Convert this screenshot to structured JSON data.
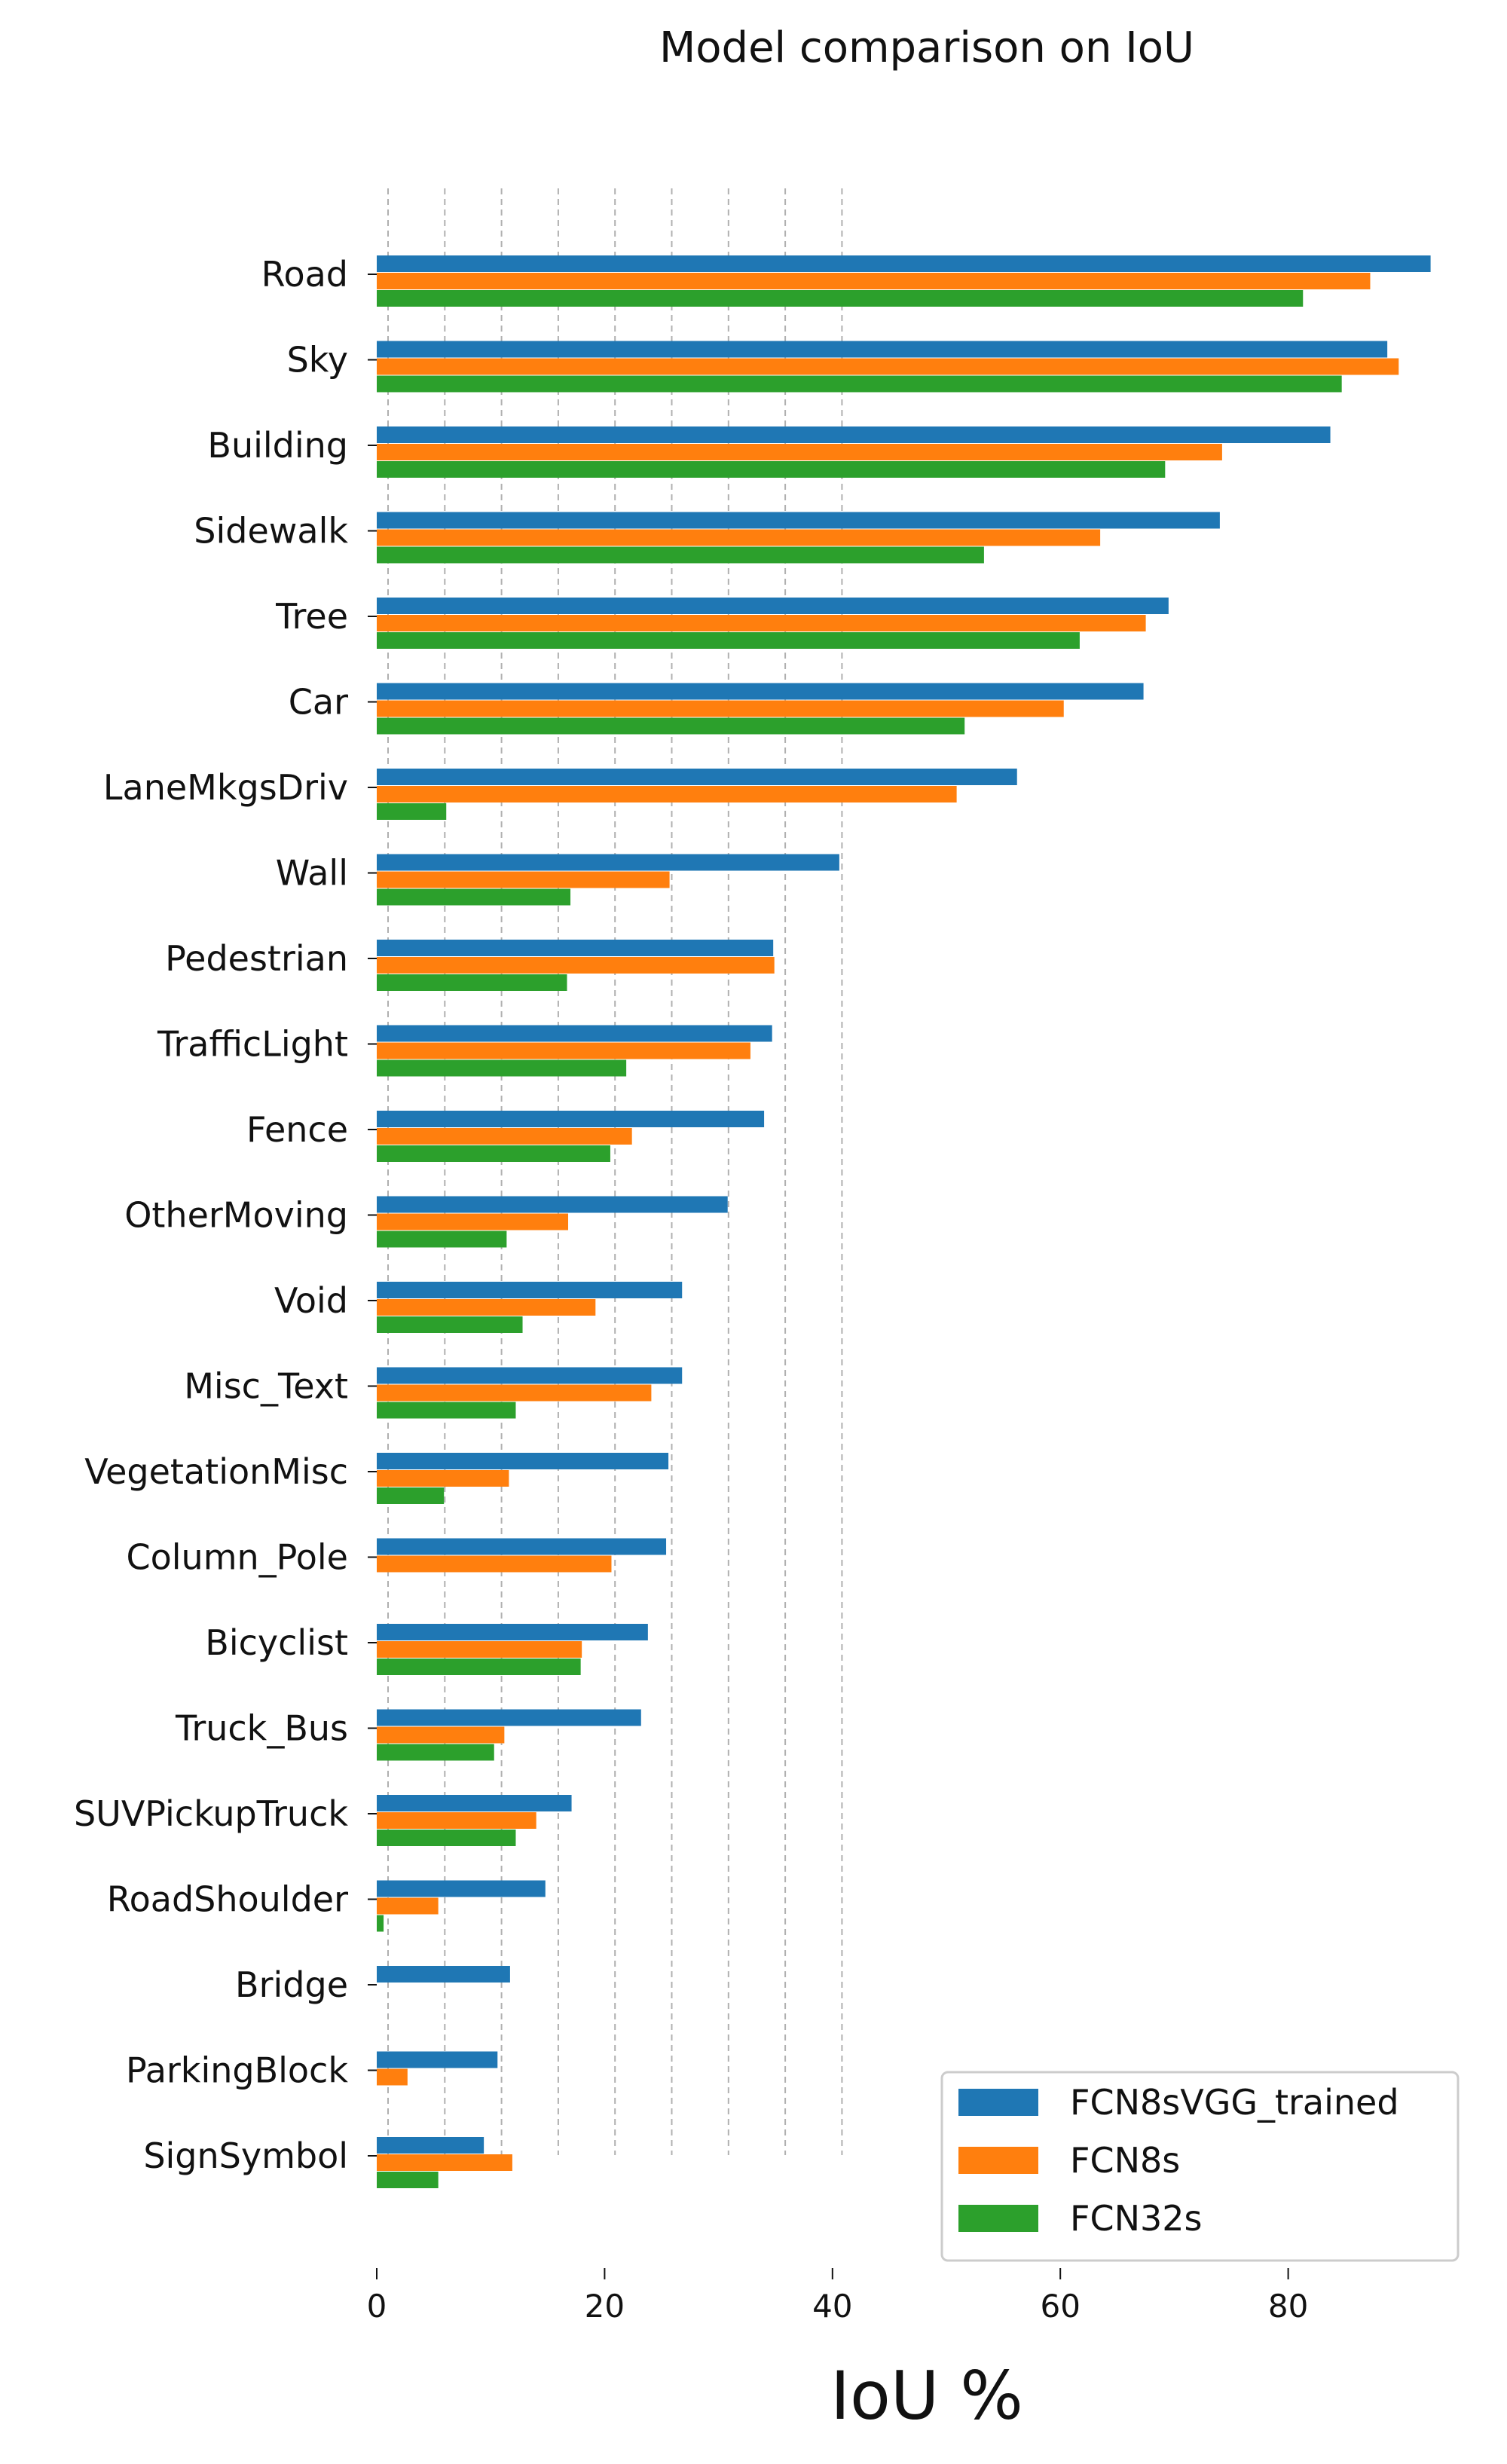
{
  "chart_data": {
    "type": "bar",
    "orientation": "horizontal",
    "title": "Model comparison on IoU",
    "xlabel": "IoU %",
    "ylabel": "",
    "xlim": [
      0,
      95
    ],
    "xticks": [
      0,
      20,
      40,
      60,
      80
    ],
    "grid": "vertical dashed",
    "legend_position": "bottom-right",
    "categories": [
      "Road",
      "Sky",
      "Building",
      "Sidewalk",
      "Tree",
      "Car",
      "LaneMkgsDriv",
      "Wall",
      "Pedestrian",
      "TrafficLight",
      "Fence",
      "OtherMoving",
      "Void",
      "Misc_Text",
      "VegetationMisc",
      "Column_Pole",
      "Bicyclist",
      "Truck_Bus",
      "SUVPickupTruck",
      "RoadShoulder",
      "Bridge",
      "ParkingBlock",
      "SignSymbol"
    ],
    "series": [
      {
        "name": "FCN8sVGG_trained",
        "color": "#1f77b4",
        "values": [
          92.5,
          88.7,
          83.7,
          74.0,
          69.5,
          67.3,
          56.2,
          40.6,
          34.8,
          34.7,
          34.0,
          30.8,
          26.8,
          26.8,
          25.6,
          25.4,
          23.8,
          23.2,
          17.1,
          14.8,
          11.7,
          10.6,
          9.4
        ]
      },
      {
        "name": "FCN8s",
        "color": "#ff7f0e",
        "values": [
          87.2,
          89.7,
          74.2,
          63.5,
          67.5,
          60.3,
          50.9,
          25.7,
          34.9,
          32.8,
          22.4,
          16.8,
          19.2,
          24.1,
          11.6,
          20.6,
          18.0,
          11.2,
          14.0,
          5.4,
          0,
          2.7,
          11.9
        ]
      },
      {
        "name": "FCN32s",
        "color": "#2ca02c",
        "values": [
          81.3,
          84.7,
          69.2,
          53.3,
          61.7,
          51.6,
          6.1,
          17.0,
          16.7,
          21.9,
          20.5,
          11.4,
          12.8,
          12.2,
          5.9,
          0,
          17.9,
          10.3,
          12.2,
          0.6,
          0,
          0,
          5.4
        ]
      }
    ]
  }
}
